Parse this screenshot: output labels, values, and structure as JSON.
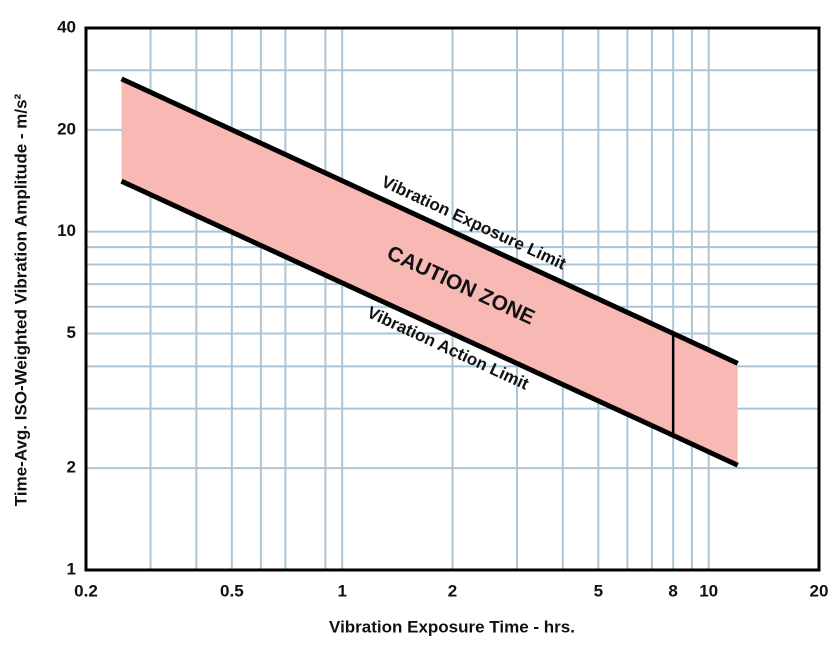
{
  "chart_data": {
    "type": "line",
    "x_label": "Vibration Exposure Time - hrs.",
    "y_label": "Time-Avg. ISO-Weighted Vibration Amplitude - m/s²",
    "x": [
      0.25,
      8,
      12
    ],
    "series": [
      {
        "name": "Vibration Exposure Limit",
        "color": "#000000",
        "values": [
          28.3,
          5,
          4.08
        ]
      },
      {
        "name": "Vibration Action Limit",
        "color": "#000000",
        "values": [
          14.1,
          2.5,
          2.04
        ]
      }
    ],
    "fill_color": "#f8b9b5",
    "annotation": "CAUTION ZONE",
    "xlim": [
      0.2,
      20
    ],
    "ylim": [
      1,
      40
    ],
    "xticks": [
      0.2,
      0.5,
      1,
      2,
      5,
      8,
      10,
      20
    ],
    "yticks": [
      1,
      2,
      5,
      10,
      20,
      40
    ],
    "xminor": [
      0.3,
      0.4,
      0.6,
      0.7,
      0.9,
      3,
      4,
      6,
      7,
      9
    ],
    "yminor": [
      3,
      4,
      6,
      7,
      8,
      9,
      30
    ],
    "log_x": true,
    "log_y": true,
    "grid": true,
    "grid_color": "#a9c5d6"
  }
}
